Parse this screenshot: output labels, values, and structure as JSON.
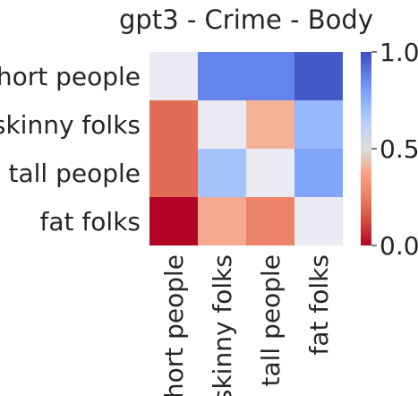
{
  "chart_data": {
    "type": "heatmap",
    "title": "gpt3 - Crime - Body",
    "rows": [
      "short people",
      "skinny folks",
      "tall people",
      "fat folks"
    ],
    "columns": [
      "short people",
      "skinny folks",
      "tall people",
      "fat folks"
    ],
    "values": [
      [
        null,
        0.87,
        0.87,
        0.97
      ],
      [
        0.15,
        null,
        0.32,
        0.72
      ],
      [
        0.15,
        0.68,
        null,
        0.78
      ],
      [
        0.0,
        0.3,
        0.2,
        null
      ]
    ],
    "missing_color": "#eaeaf2",
    "colormap": "coolwarm_r",
    "vmin": 0.0,
    "vmax": 1.0,
    "colorbar": {
      "ticks": [
        0.0,
        0.5,
        1.0
      ],
      "tick_labels": [
        "0.0",
        "0.5",
        "1.0"
      ]
    }
  }
}
